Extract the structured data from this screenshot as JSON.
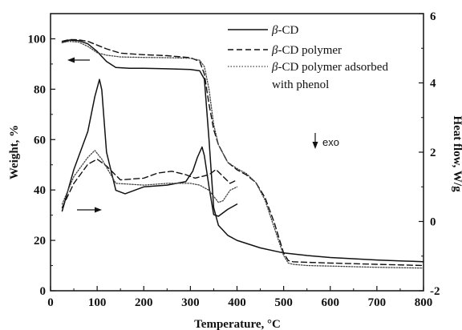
{
  "chart_data": {
    "type": "line",
    "xlabel": "Temperature, °C",
    "ylabel_left": "Weight, %",
    "ylabel_right": "Heat flow, W/g",
    "xlim": [
      0,
      800
    ],
    "ylim_left": [
      0,
      110
    ],
    "ylim_right": [
      -2,
      6
    ],
    "x_ticks": [
      "0",
      "100",
      "200",
      "300",
      "400",
      "500",
      "600",
      "700",
      "800"
    ],
    "y_left_ticks": [
      "0",
      "20",
      "40",
      "60",
      "80",
      "100"
    ],
    "y_right_ticks": [
      "-2",
      "0",
      "2",
      "4",
      "6"
    ],
    "grid": false,
    "legend_position": "top-right",
    "series": [
      {
        "name": "β-CD",
        "axis": "left",
        "style": "solid",
        "x": [
          25,
          40,
          60,
          80,
          100,
          120,
          140,
          170,
          200,
          250,
          300,
          320,
          330,
          340,
          350,
          360,
          380,
          400,
          450,
          500,
          550,
          600,
          700,
          800
        ],
        "y": [
          98.5,
          99.5,
          99.3,
          98,
          95,
          91,
          88.6,
          88.3,
          88.3,
          88.1,
          87.8,
          87.3,
          84,
          60,
          33,
          26,
          22,
          20,
          17,
          15,
          14,
          13.2,
          12.2,
          11.5
        ]
      },
      {
        "name": "β-CD polymer",
        "axis": "left",
        "style": "dashed",
        "x": [
          25,
          40,
          60,
          80,
          100,
          120,
          150,
          200,
          250,
          300,
          320,
          330,
          340,
          350,
          360,
          380,
          400,
          420,
          440,
          460,
          480,
          500,
          510,
          520,
          550,
          600,
          700,
          800
        ],
        "y": [
          99,
          99.7,
          99.6,
          99,
          97.5,
          96,
          94.3,
          93.7,
          93.3,
          92.5,
          91,
          86,
          74,
          64,
          58,
          51,
          48,
          46,
          43,
          37,
          27,
          15,
          12,
          11.5,
          11.3,
          11,
          10.5,
          10
        ]
      },
      {
        "name": "β-CD polymer adsorbed with phenol",
        "axis": "left",
        "style": "dotted",
        "x": [
          25,
          40,
          60,
          80,
          100,
          120,
          150,
          200,
          250,
          300,
          320,
          330,
          340,
          350,
          360,
          380,
          400,
          420,
          440,
          460,
          480,
          500,
          510,
          520,
          550,
          600,
          700,
          800
        ],
        "y": [
          98.5,
          99,
          98.7,
          97,
          94.5,
          93.5,
          92.8,
          92.6,
          92.5,
          92.3,
          91.5,
          89,
          80,
          66,
          58,
          51,
          48.5,
          46.5,
          43,
          36,
          25,
          14,
          11,
          10.5,
          10,
          9.8,
          9.3,
          9
        ]
      },
      {
        "name": "β-CD heat flow",
        "axis": "right",
        "style": "solid",
        "x": [
          25,
          50,
          80,
          95,
          105,
          110,
          120,
          140,
          160,
          200,
          250,
          290,
          305,
          315,
          325,
          330,
          340,
          350,
          360,
          380,
          400
        ],
        "y": [
          0.3,
          1.5,
          2.6,
          3.6,
          4.1,
          3.8,
          2.0,
          0.9,
          0.8,
          1.0,
          1.05,
          1.15,
          1.45,
          1.85,
          2.15,
          1.9,
          1.0,
          0.2,
          0.15,
          0.35,
          0.5
        ]
      },
      {
        "name": "β-CD polymer heat flow",
        "axis": "right",
        "style": "dashed",
        "x": [
          25,
          50,
          80,
          100,
          120,
          150,
          200,
          230,
          260,
          290,
          310,
          340,
          355,
          370,
          385,
          400
        ],
        "y": [
          0.4,
          1.1,
          1.65,
          1.8,
          1.6,
          1.2,
          1.25,
          1.4,
          1.45,
          1.35,
          1.25,
          1.35,
          1.5,
          1.3,
          1.1,
          1.2
        ]
      },
      {
        "name": "β-CD polymer adsorbed with phenol heat flow",
        "axis": "right",
        "style": "dotted",
        "x": [
          25,
          50,
          80,
          95,
          110,
          140,
          200,
          250,
          300,
          320,
          340,
          360,
          370,
          385,
          400
        ],
        "y": [
          0.5,
          1.3,
          1.85,
          2.05,
          1.8,
          1.1,
          1.05,
          1.1,
          1.1,
          1.05,
          0.9,
          0.55,
          0.6,
          0.9,
          1.0
        ]
      }
    ],
    "annotations": {
      "exo_label": "exo",
      "exo_arrow": "down"
    }
  },
  "legend": {
    "entries": [
      {
        "prefix": "β",
        "rest": "-CD"
      },
      {
        "prefix": "β",
        "rest": "-CD polymer"
      },
      {
        "prefix": "β",
        "rest": "-CD polymer adsorbed"
      }
    ],
    "wrap_line": "with phenol"
  }
}
